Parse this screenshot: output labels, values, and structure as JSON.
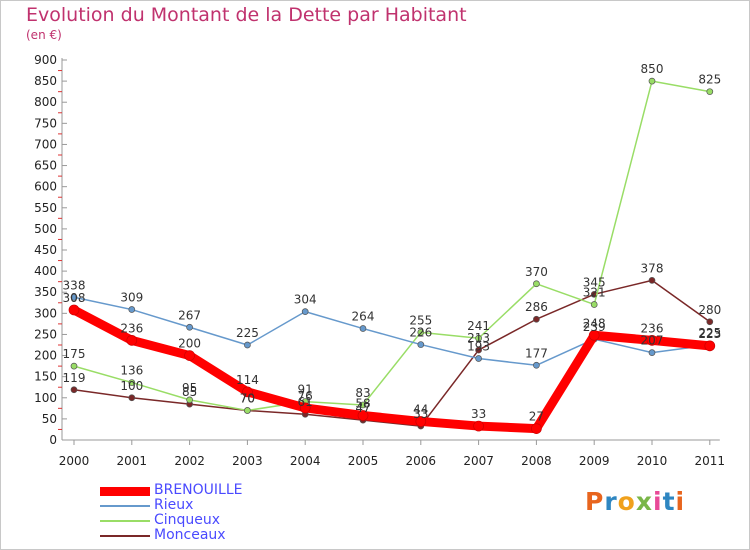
{
  "title": "Evolution du Montant de la Dette par Habitant",
  "subtitle": "(en €)",
  "logo": {
    "text": "Proxiti",
    "letter_colors": [
      "#e8651e",
      "#2e86c1",
      "#f0a11c",
      "#7ab648",
      "#e84a97",
      "#2e86c1",
      "#e8651e"
    ]
  },
  "chart_data": {
    "type": "line",
    "title": "Evolution du Montant de la Dette par Habitant",
    "subtitle": "(en €)",
    "x": [
      "2000",
      "2001",
      "2002",
      "2003",
      "2004",
      "2005",
      "2006",
      "2007",
      "2008",
      "2009",
      "2010",
      "2011"
    ],
    "ylim": [
      0,
      900
    ],
    "yticks": [
      0,
      50,
      100,
      150,
      200,
      250,
      300,
      350,
      400,
      450,
      500,
      550,
      600,
      650,
      700,
      750,
      800,
      850,
      900
    ],
    "grid": false,
    "legend_position": "bottom-left",
    "series": [
      {
        "name": "BRENOUILLE",
        "color": "#ff0000",
        "values": [
          308,
          236,
          200,
          114,
          76,
          58,
          44,
          33,
          27,
          248,
          236,
          223
        ],
        "labels": [
          "308",
          "236",
          "200",
          "114",
          "76",
          "58",
          "44",
          "33",
          "27",
          "248",
          "236",
          "223"
        ]
      },
      {
        "name": "Rieux",
        "color": "#6699cc",
        "values": [
          338,
          309,
          267,
          225,
          304,
          264,
          226,
          193,
          177,
          239,
          207,
          225
        ],
        "labels": [
          "338",
          "309",
          "267",
          "225",
          "304",
          "264",
          "226",
          "193",
          "177",
          "239",
          "207",
          "225"
        ]
      },
      {
        "name": "Cinqueux",
        "color": "#99dd66",
        "values": [
          175,
          136,
          95,
          70,
          91,
          83,
          255,
          241,
          370,
          321,
          850,
          825
        ],
        "labels": [
          "175",
          "136",
          "95",
          "70",
          "91",
          "83",
          "255",
          "241",
          "370",
          "321",
          "850",
          "825"
        ]
      },
      {
        "name": "Monceaux",
        "color": "#7a2828",
        "values": [
          119,
          100,
          85,
          70,
          61,
          47,
          33,
          213,
          286,
          345,
          378,
          280
        ],
        "labels": [
          "119",
          "100",
          "85",
          "70",
          "61",
          "47",
          "33",
          "213",
          "286",
          "345",
          "378",
          "280"
        ]
      }
    ]
  }
}
